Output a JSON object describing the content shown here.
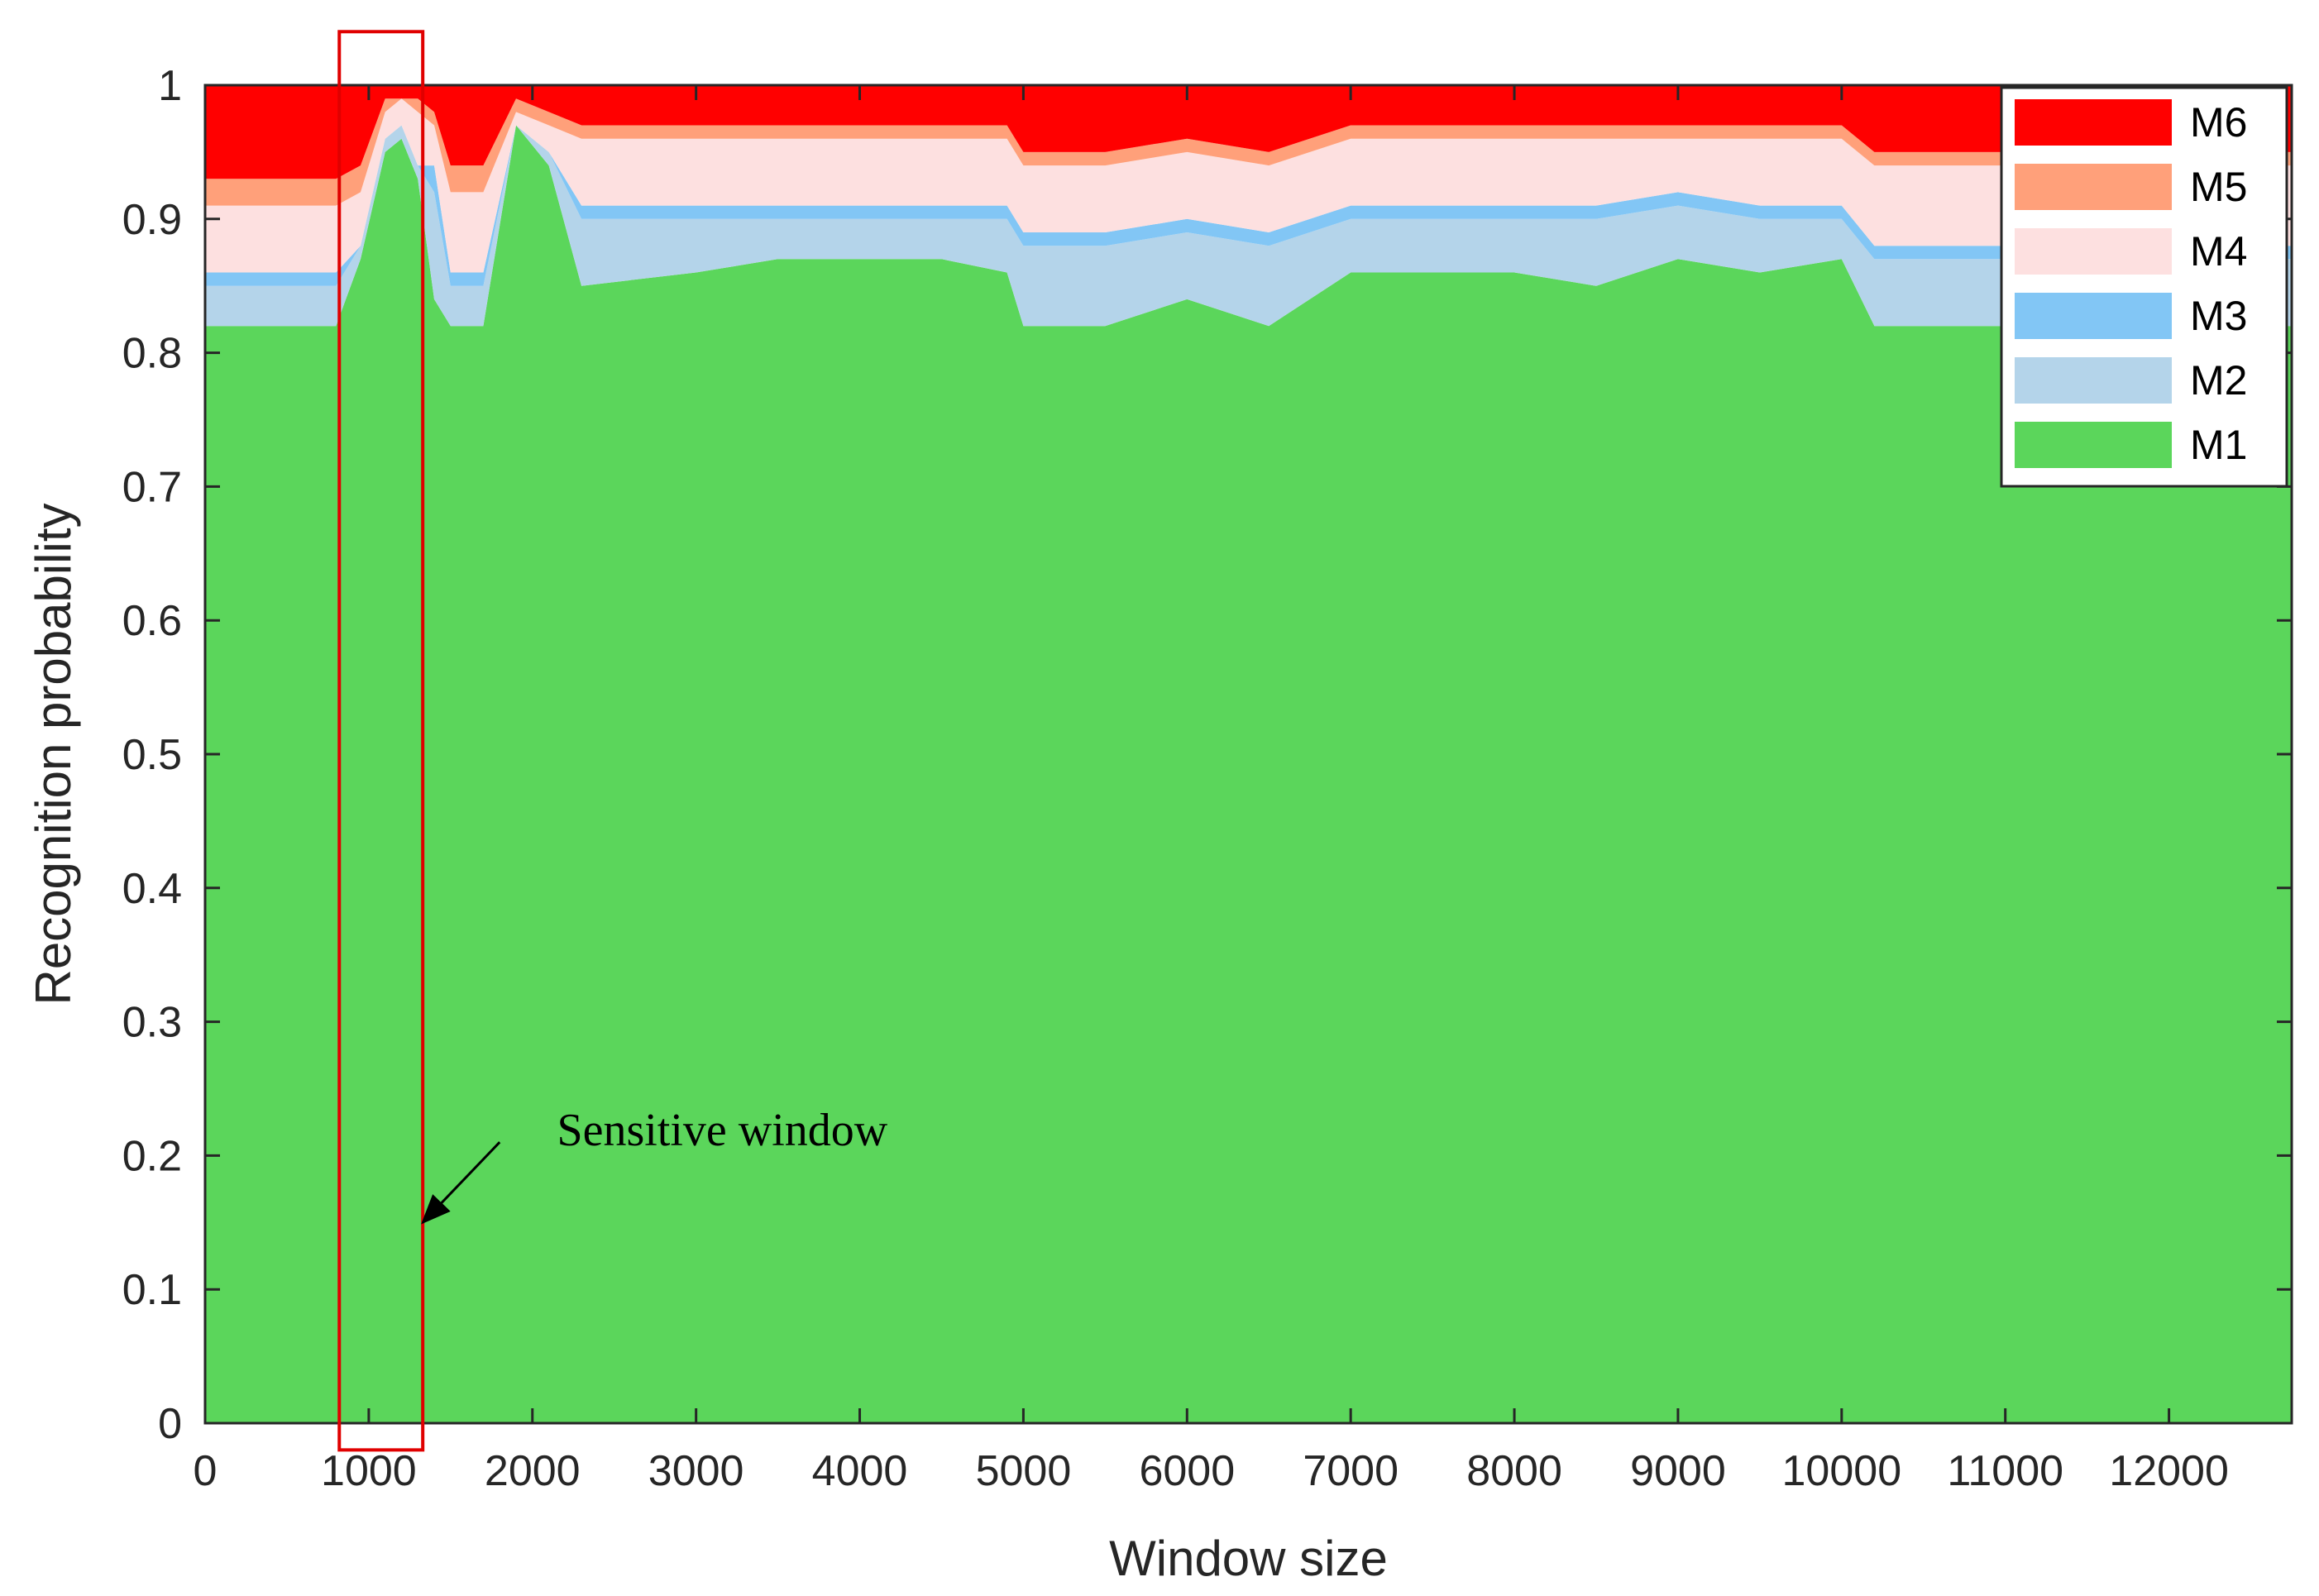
{
  "chart_data": {
    "type": "area",
    "xlabel": "Window size",
    "ylabel": "Recognition probability",
    "xlim": [
      0,
      12750
    ],
    "ylim": [
      0,
      1
    ],
    "xticks": [
      "0",
      "1000",
      "2000",
      "3000",
      "4000",
      "5000",
      "6000",
      "7000",
      "8000",
      "9000",
      "10000",
      "11000",
      "12000"
    ],
    "yticks": [
      "0",
      "0.1",
      "0.2",
      "0.3",
      "0.4",
      "0.5",
      "0.6",
      "0.7",
      "0.8",
      "0.9",
      "1"
    ],
    "stacking": "stacked to 1 (M1 bottom, M6 top)",
    "x": [
      0,
      500,
      800,
      950,
      1100,
      1200,
      1300,
      1400,
      1500,
      1700,
      1900,
      2100,
      2300,
      3000,
      3500,
      4000,
      4500,
      4900,
      5000,
      5500,
      6000,
      6500,
      7000,
      7500,
      8000,
      8500,
      9000,
      9500,
      10000,
      10200,
      10500,
      11000,
      11500,
      12000,
      12750
    ],
    "series": [
      {
        "name": "M1",
        "color": "#5bd65b",
        "values": [
          0.82,
          0.82,
          0.82,
          0.87,
          0.95,
          0.96,
          0.93,
          0.84,
          0.82,
          0.82,
          0.97,
          0.94,
          0.85,
          0.86,
          0.87,
          0.87,
          0.87,
          0.86,
          0.82,
          0.82,
          0.84,
          0.82,
          0.86,
          0.86,
          0.86,
          0.85,
          0.87,
          0.86,
          0.87,
          0.82,
          0.82,
          0.82,
          0.82,
          0.82,
          0.82
        ]
      },
      {
        "name": "M2",
        "color": "#b4d4ea",
        "values": [
          0.03,
          0.03,
          0.03,
          0.01,
          0.01,
          0.01,
          0.01,
          0.08,
          0.03,
          0.03,
          0.0,
          0.01,
          0.05,
          0.04,
          0.03,
          0.03,
          0.03,
          0.04,
          0.06,
          0.06,
          0.05,
          0.06,
          0.04,
          0.04,
          0.04,
          0.05,
          0.04,
          0.04,
          0.03,
          0.05,
          0.05,
          0.05,
          0.05,
          0.05,
          0.05
        ]
      },
      {
        "name": "M3",
        "color": "#82c6f5",
        "values": [
          0.01,
          0.01,
          0.01,
          0.0,
          0.0,
          0.0,
          0.0,
          0.02,
          0.01,
          0.01,
          0.0,
          0.0,
          0.01,
          0.01,
          0.01,
          0.01,
          0.01,
          0.01,
          0.01,
          0.01,
          0.01,
          0.01,
          0.01,
          0.01,
          0.01,
          0.01,
          0.01,
          0.01,
          0.01,
          0.01,
          0.01,
          0.01,
          0.01,
          0.01,
          0.01
        ]
      },
      {
        "name": "M4",
        "color": "#fde0e0",
        "values": [
          0.05,
          0.05,
          0.05,
          0.04,
          0.02,
          0.02,
          0.04,
          0.03,
          0.06,
          0.06,
          0.01,
          0.02,
          0.05,
          0.05,
          0.05,
          0.05,
          0.05,
          0.05,
          0.05,
          0.05,
          0.05,
          0.05,
          0.05,
          0.05,
          0.05,
          0.05,
          0.04,
          0.05,
          0.05,
          0.06,
          0.06,
          0.06,
          0.06,
          0.06,
          0.06
        ]
      },
      {
        "name": "M5",
        "color": "#ffa07a",
        "values": [
          0.02,
          0.02,
          0.02,
          0.02,
          0.01,
          0.0,
          0.01,
          0.01,
          0.02,
          0.02,
          0.01,
          0.01,
          0.01,
          0.01,
          0.01,
          0.01,
          0.01,
          0.01,
          0.01,
          0.01,
          0.01,
          0.01,
          0.01,
          0.01,
          0.01,
          0.01,
          0.01,
          0.01,
          0.01,
          0.01,
          0.01,
          0.01,
          0.01,
          0.01,
          0.01
        ]
      },
      {
        "name": "M6",
        "color": "#ff0000",
        "values": [
          0.07,
          0.07,
          0.07,
          0.06,
          0.01,
          0.01,
          0.01,
          0.02,
          0.06,
          0.06,
          0.01,
          0.02,
          0.03,
          0.03,
          0.03,
          0.03,
          0.03,
          0.03,
          0.05,
          0.05,
          0.04,
          0.05,
          0.03,
          0.03,
          0.03,
          0.03,
          0.03,
          0.03,
          0.03,
          0.05,
          0.05,
          0.05,
          0.05,
          0.05,
          0.05
        ]
      }
    ],
    "legend_location": "top-right",
    "grid": false,
    "annotations": [
      {
        "text": "Sensitive window",
        "highlight_x_range": [
          820,
          1330
        ],
        "highlight_y_range": [
          -0.02,
          1.04
        ],
        "arrow_tail": [
          1800,
          0.21
        ],
        "arrow_head": [
          1330,
          0.15
        ],
        "text_anchor": [
          2150,
          0.22
        ],
        "color": "#e00000"
      }
    ]
  }
}
